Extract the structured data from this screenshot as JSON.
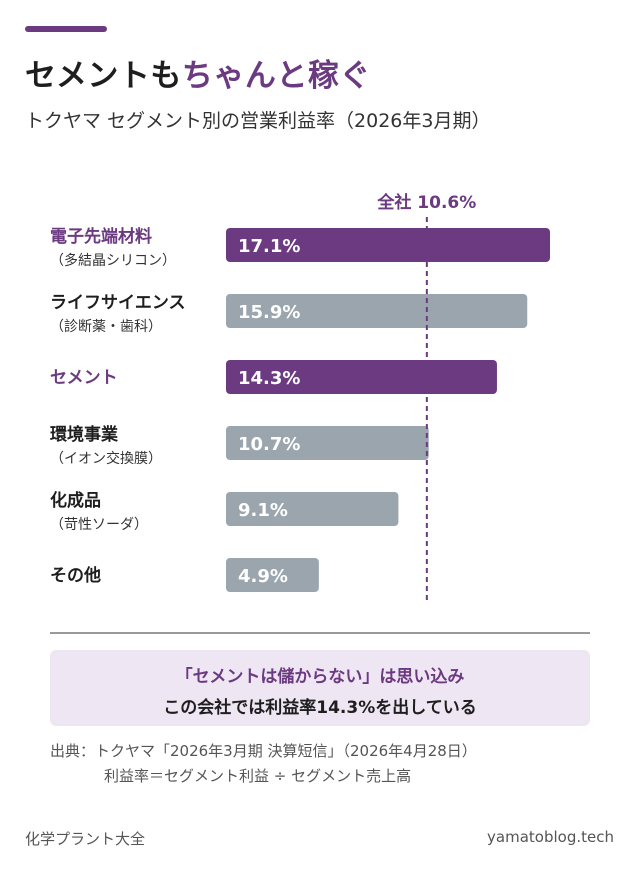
{
  "header": {
    "title_main": "セメントも",
    "title_highlight": "ちゃんと稼ぐ",
    "subtitle": "トクヤマ セグメント別の営業利益率（2026年3月期）"
  },
  "colors": {
    "highlight": "#6b3a80",
    "neutral": "#9ba5ae",
    "callout_bg": "#efe6f4"
  },
  "chart_data": {
    "type": "bar",
    "orientation": "horizontal",
    "categories": [
      {
        "name": "電子先端材料",
        "sub": "（多結晶シリコン）",
        "highlight": true
      },
      {
        "name": "ライフサイエンス",
        "sub": "（診断薬・歯科）",
        "highlight": false
      },
      {
        "name": "セメント",
        "sub": "",
        "highlight": true
      },
      {
        "name": "環境事業",
        "sub": "（イオン交換膜）",
        "highlight": false
      },
      {
        "name": "化成品",
        "sub": "（苛性ソーダ）",
        "highlight": false
      },
      {
        "name": "その他",
        "sub": "",
        "highlight": false
      }
    ],
    "values": [
      17.1,
      15.9,
      14.3,
      10.7,
      9.1,
      4.9
    ],
    "value_labels": [
      "17.1%",
      "15.9%",
      "14.3%",
      "10.7%",
      "9.1%",
      "4.9%"
    ],
    "reference": {
      "label": "全社 10.6%",
      "value": 10.6
    },
    "xlim": [
      0,
      17.1
    ]
  },
  "callout": {
    "line1": "「セメントは儲からない」は思い込み",
    "line2": "この会社では利益率14.3%を出している"
  },
  "source": {
    "line1": "出典：トクヤマ「2026年3月期 決算短信」（2026年4月28日）",
    "line2": "利益率＝セグメント利益 ÷ セグメント売上高"
  },
  "footer": {
    "left": "化学プラント大全",
    "right": "yamatoblog.tech"
  }
}
